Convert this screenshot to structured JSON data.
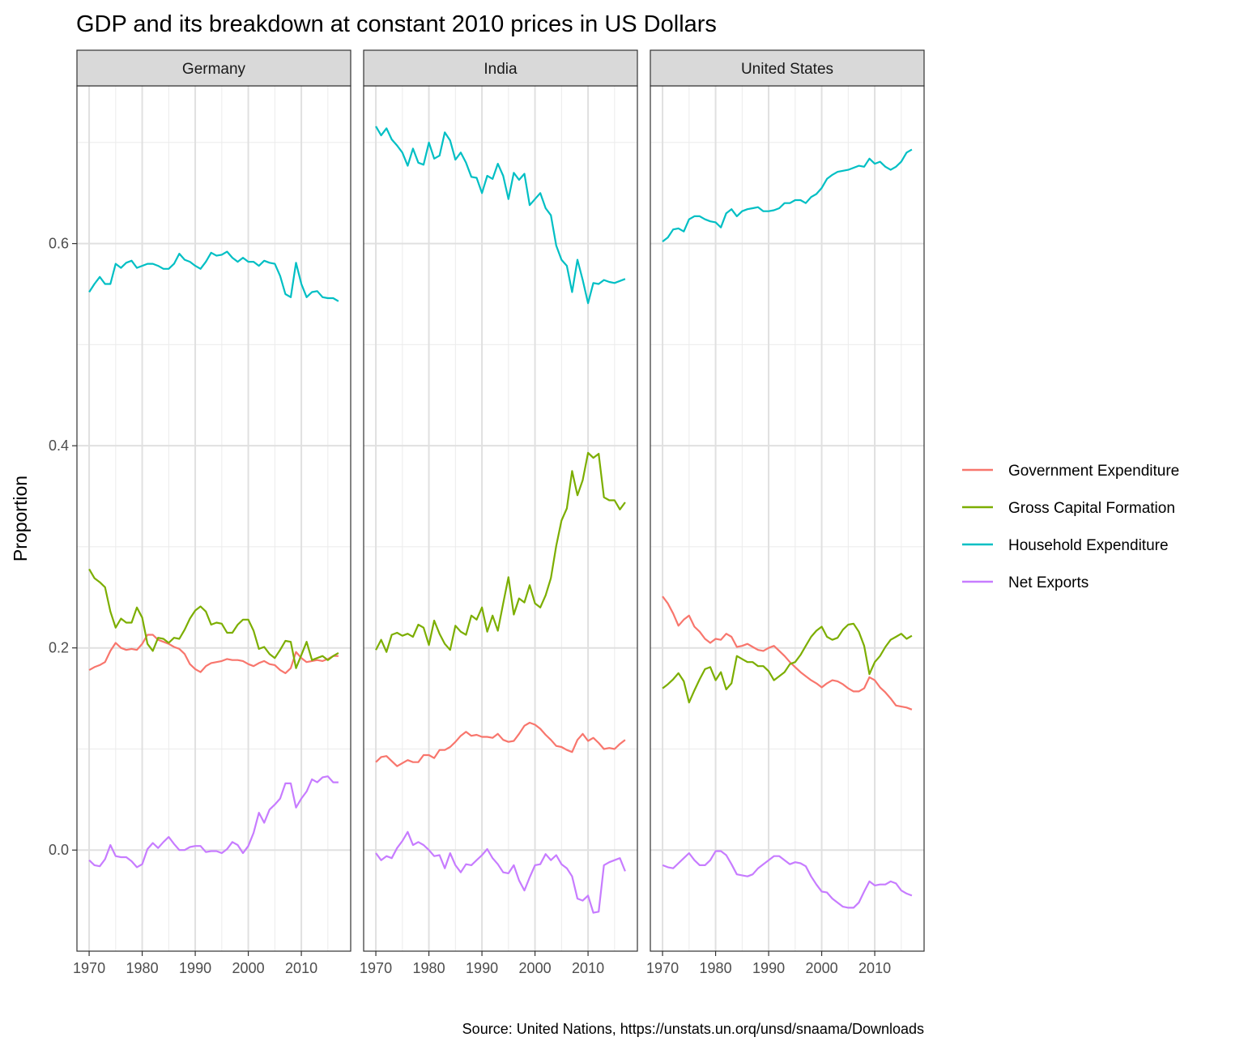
{
  "chart_data": {
    "type": "line",
    "title": "GDP and its breakdown at constant 2010 prices in US Dollars",
    "xlabel": "",
    "ylabel": "Proportion",
    "caption": "Source: United Nations, https://unstats.un.orq/unsd/snaama/Downloads",
    "xlim": [
      1967.7,
      2019.3
    ],
    "ylim": [
      -0.1,
      0.756
    ],
    "x_ticks": [
      1970,
      1980,
      1990,
      2000,
      2010
    ],
    "x_tick_labels": [
      "1970",
      "1980",
      "1990",
      "2000",
      "2010"
    ],
    "y_ticks": [
      0.0,
      0.2,
      0.4,
      0.6
    ],
    "y_tick_labels": [
      "0.0",
      "0.2",
      "0.4",
      "0.6"
    ],
    "grid": true,
    "legend_position": "right",
    "legend": [
      {
        "name": "Government Expenditure",
        "color": "#F8766D"
      },
      {
        "name": "Gross Capital Formation",
        "color": "#7CAE00"
      },
      {
        "name": "Household Expenditure",
        "color": "#00BFC4"
      },
      {
        "name": "Net Exports",
        "color": "#C77CFF"
      }
    ],
    "x": [
      1970,
      1971,
      1972,
      1973,
      1974,
      1975,
      1976,
      1977,
      1978,
      1979,
      1980,
      1981,
      1982,
      1983,
      1984,
      1985,
      1986,
      1987,
      1988,
      1989,
      1990,
      1991,
      1992,
      1993,
      1994,
      1995,
      1996,
      1997,
      1998,
      1999,
      2000,
      2001,
      2002,
      2003,
      2004,
      2005,
      2006,
      2007,
      2008,
      2009,
      2010,
      2011,
      2012,
      2013,
      2014,
      2015,
      2016,
      2017
    ],
    "panels": [
      {
        "name": "Germany",
        "series": [
          {
            "name": "Government Expenditure",
            "values": [
              0.178,
              0.181,
              0.183,
              0.186,
              0.197,
              0.205,
              0.2,
              0.198,
              0.199,
              0.198,
              0.204,
              0.213,
              0.213,
              0.208,
              0.206,
              0.204,
              0.201,
              0.199,
              0.194,
              0.184,
              0.179,
              0.176,
              0.182,
              0.185,
              0.186,
              0.187,
              0.189,
              0.188,
              0.188,
              0.187,
              0.184,
              0.182,
              0.185,
              0.187,
              0.184,
              0.183,
              0.178,
              0.175,
              0.18,
              0.196,
              0.19,
              0.186,
              0.187,
              0.188,
              0.187,
              0.189,
              0.192,
              0.192
            ]
          },
          {
            "name": "Gross Capital Formation",
            "values": [
              0.278,
              0.269,
              0.265,
              0.26,
              0.236,
              0.22,
              0.229,
              0.225,
              0.225,
              0.24,
              0.23,
              0.204,
              0.197,
              0.21,
              0.209,
              0.205,
              0.21,
              0.209,
              0.218,
              0.229,
              0.237,
              0.241,
              0.236,
              0.223,
              0.225,
              0.224,
              0.215,
              0.215,
              0.223,
              0.228,
              0.228,
              0.217,
              0.199,
              0.201,
              0.194,
              0.19,
              0.198,
              0.207,
              0.206,
              0.18,
              0.193,
              0.206,
              0.188,
              0.19,
              0.192,
              0.188,
              0.192,
              0.195
            ]
          },
          {
            "name": "Household Expenditure",
            "values": [
              0.552,
              0.56,
              0.567,
              0.56,
              0.56,
              0.58,
              0.576,
              0.581,
              0.583,
              0.576,
              0.578,
              0.58,
              0.58,
              0.578,
              0.575,
              0.575,
              0.58,
              0.59,
              0.584,
              0.582,
              0.578,
              0.575,
              0.582,
              0.591,
              0.588,
              0.589,
              0.592,
              0.586,
              0.582,
              0.586,
              0.582,
              0.582,
              0.578,
              0.583,
              0.581,
              0.58,
              0.568,
              0.55,
              0.547,
              0.581,
              0.56,
              0.547,
              0.552,
              0.553,
              0.547,
              0.546,
              0.546,
              0.543
            ]
          },
          {
            "name": "Net Exports",
            "values": [
              -0.01,
              -0.015,
              -0.016,
              -0.009,
              0.005,
              -0.006,
              -0.007,
              -0.007,
              -0.011,
              -0.017,
              -0.014,
              0.001,
              0.007,
              0.002,
              0.008,
              0.013,
              0.006,
              0.0,
              0.0,
              0.003,
              0.004,
              0.004,
              -0.002,
              -0.001,
              -0.001,
              -0.003,
              0.001,
              0.008,
              0.005,
              -0.003,
              0.004,
              0.017,
              0.037,
              0.027,
              0.04,
              0.045,
              0.051,
              0.066,
              0.066,
              0.042,
              0.051,
              0.058,
              0.07,
              0.067,
              0.072,
              0.073,
              0.067,
              0.067
            ]
          }
        ]
      },
      {
        "name": "India",
        "series": [
          {
            "name": "Government Expenditure",
            "values": [
              0.087,
              0.092,
              0.093,
              0.088,
              0.083,
              0.086,
              0.089,
              0.087,
              0.087,
              0.094,
              0.094,
              0.091,
              0.099,
              0.099,
              0.102,
              0.107,
              0.113,
              0.117,
              0.113,
              0.114,
              0.112,
              0.112,
              0.111,
              0.115,
              0.109,
              0.107,
              0.108,
              0.115,
              0.123,
              0.126,
              0.124,
              0.12,
              0.114,
              0.109,
              0.103,
              0.102,
              0.099,
              0.097,
              0.109,
              0.115,
              0.108,
              0.111,
              0.106,
              0.1,
              0.101,
              0.1,
              0.105,
              0.109
            ]
          },
          {
            "name": "Gross Capital Formation",
            "values": [
              0.198,
              0.208,
              0.196,
              0.213,
              0.215,
              0.212,
              0.214,
              0.211,
              0.223,
              0.22,
              0.203,
              0.227,
              0.214,
              0.204,
              0.198,
              0.222,
              0.216,
              0.213,
              0.232,
              0.228,
              0.24,
              0.216,
              0.232,
              0.217,
              0.244,
              0.27,
              0.233,
              0.249,
              0.245,
              0.262,
              0.244,
              0.24,
              0.252,
              0.269,
              0.301,
              0.326,
              0.338,
              0.375,
              0.351,
              0.366,
              0.393,
              0.388,
              0.392,
              0.349,
              0.346,
              0.346,
              0.337,
              0.344
            ]
          },
          {
            "name": "Household Expenditure",
            "values": [
              0.716,
              0.707,
              0.714,
              0.703,
              0.697,
              0.69,
              0.677,
              0.694,
              0.68,
              0.678,
              0.7,
              0.684,
              0.687,
              0.71,
              0.702,
              0.683,
              0.69,
              0.68,
              0.666,
              0.665,
              0.65,
              0.667,
              0.664,
              0.679,
              0.667,
              0.644,
              0.67,
              0.663,
              0.669,
              0.638,
              0.644,
              0.65,
              0.635,
              0.628,
              0.598,
              0.584,
              0.578,
              0.552,
              0.584,
              0.564,
              0.541,
              0.561,
              0.56,
              0.564,
              0.562,
              0.561,
              0.563,
              0.565
            ]
          },
          {
            "name": "Net Exports",
            "values": [
              -0.003,
              -0.01,
              -0.006,
              -0.008,
              0.002,
              0.009,
              0.018,
              0.005,
              0.008,
              0.005,
              0.0,
              -0.006,
              -0.005,
              -0.018,
              -0.003,
              -0.015,
              -0.022,
              -0.014,
              -0.015,
              -0.01,
              -0.005,
              0.001,
              -0.008,
              -0.014,
              -0.022,
              -0.023,
              -0.015,
              -0.03,
              -0.04,
              -0.027,
              -0.015,
              -0.014,
              -0.004,
              -0.01,
              -0.005,
              -0.014,
              -0.018,
              -0.026,
              -0.048,
              -0.05,
              -0.045,
              -0.062,
              -0.061,
              -0.015,
              -0.012,
              -0.01,
              -0.008,
              -0.021
            ]
          }
        ]
      },
      {
        "name": "United States",
        "series": [
          {
            "name": "Government Expenditure",
            "values": [
              0.251,
              0.244,
              0.234,
              0.222,
              0.228,
              0.232,
              0.221,
              0.216,
              0.209,
              0.205,
              0.209,
              0.208,
              0.214,
              0.211,
              0.201,
              0.202,
              0.204,
              0.201,
              0.198,
              0.197,
              0.2,
              0.202,
              0.197,
              0.192,
              0.186,
              0.181,
              0.176,
              0.172,
              0.168,
              0.165,
              0.161,
              0.165,
              0.168,
              0.167,
              0.164,
              0.16,
              0.157,
              0.157,
              0.16,
              0.171,
              0.168,
              0.161,
              0.156,
              0.15,
              0.143,
              0.142,
              0.141,
              0.139
            ]
          },
          {
            "name": "Gross Capital Formation",
            "values": [
              0.16,
              0.164,
              0.169,
              0.175,
              0.167,
              0.146,
              0.158,
              0.169,
              0.179,
              0.181,
              0.168,
              0.176,
              0.159,
              0.165,
              0.192,
              0.189,
              0.186,
              0.186,
              0.182,
              0.182,
              0.177,
              0.168,
              0.172,
              0.176,
              0.184,
              0.186,
              0.193,
              0.202,
              0.211,
              0.217,
              0.221,
              0.211,
              0.208,
              0.21,
              0.218,
              0.223,
              0.224,
              0.216,
              0.202,
              0.174,
              0.186,
              0.192,
              0.201,
              0.208,
              0.211,
              0.214,
              0.209,
              0.212
            ]
          },
          {
            "name": "Household Expenditure",
            "values": [
              0.602,
              0.606,
              0.614,
              0.615,
              0.612,
              0.624,
              0.627,
              0.627,
              0.624,
              0.622,
              0.621,
              0.616,
              0.63,
              0.634,
              0.627,
              0.632,
              0.634,
              0.635,
              0.636,
              0.632,
              0.632,
              0.633,
              0.635,
              0.64,
              0.64,
              0.643,
              0.643,
              0.64,
              0.646,
              0.649,
              0.655,
              0.664,
              0.668,
              0.671,
              0.672,
              0.673,
              0.675,
              0.677,
              0.676,
              0.684,
              0.679,
              0.681,
              0.676,
              0.673,
              0.676,
              0.681,
              0.69,
              0.693
            ]
          },
          {
            "name": "Net Exports",
            "values": [
              -0.015,
              -0.017,
              -0.018,
              -0.013,
              -0.008,
              -0.003,
              -0.01,
              -0.015,
              -0.015,
              -0.01,
              -0.001,
              -0.001,
              -0.005,
              -0.014,
              -0.024,
              -0.025,
              -0.026,
              -0.024,
              -0.018,
              -0.014,
              -0.01,
              -0.006,
              -0.006,
              -0.01,
              -0.014,
              -0.012,
              -0.013,
              -0.016,
              -0.026,
              -0.034,
              -0.041,
              -0.042,
              -0.048,
              -0.052,
              -0.056,
              -0.057,
              -0.057,
              -0.052,
              -0.041,
              -0.031,
              -0.035,
              -0.034,
              -0.034,
              -0.031,
              -0.033,
              -0.04,
              -0.043,
              -0.045
            ]
          }
        ]
      }
    ]
  }
}
